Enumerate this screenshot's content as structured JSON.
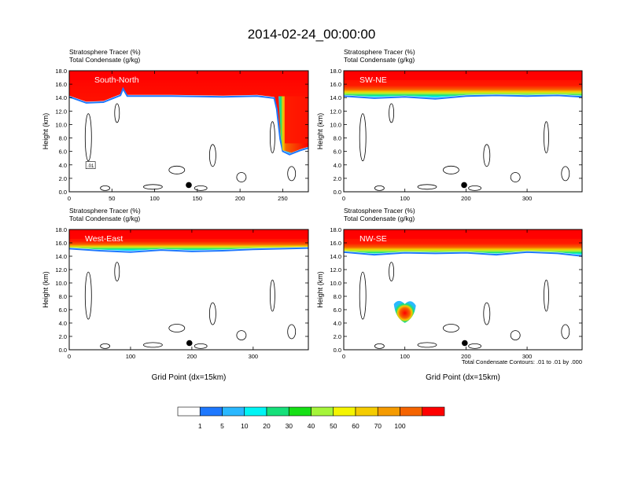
{
  "title": "2014-02-24_00:00:00",
  "colors": {
    "levels": [
      "#ffffff",
      "#1e78ff",
      "#2ab8ff",
      "#00f5f5",
      "#16e07a",
      "#16e016",
      "#a5f53a",
      "#f5f500",
      "#f5cc00",
      "#f59b00",
      "#f56400",
      "#ff0000"
    ],
    "contour": "#000000"
  },
  "colorbar": {
    "labels": [
      "1",
      "5",
      "10",
      "20",
      "30",
      "40",
      "50",
      "60",
      "70",
      "100"
    ]
  },
  "footer": {
    "contour_note": "Total Condensate Contours: .01 to .01 by .000"
  },
  "chart_data": [
    {
      "type": "heatmap",
      "panel_label": "South-North",
      "line1": "Stratosphere Tracer   (%)",
      "line2": "Total Condensate   (g/kg)",
      "ylabel": "Height (km)",
      "xlabel": "",
      "xlim": [
        0,
        280
      ],
      "ylim": [
        0,
        18
      ],
      "xticks": [
        "0",
        "50",
        "100",
        "150",
        "200",
        "250"
      ],
      "xtick_values": [
        0,
        50,
        100,
        150,
        200,
        250
      ],
      "yticks": [
        "0.0",
        "2.0",
        "4.0",
        "6.0",
        "8.0",
        "10.0",
        "12.0",
        "14.0",
        "16.0",
        "18.0"
      ],
      "tropopause_km": [
        [
          0,
          14.3
        ],
        [
          20,
          13.4
        ],
        [
          40,
          13.5
        ],
        [
          60,
          14.5
        ],
        [
          63,
          15.5
        ],
        [
          68,
          14.4
        ],
        [
          120,
          14.4
        ],
        [
          180,
          14.3
        ],
        [
          220,
          14.4
        ],
        [
          240,
          14.1
        ],
        [
          243,
          12.5
        ],
        [
          247,
          8
        ],
        [
          250,
          6.2
        ],
        [
          258,
          5.7
        ],
        [
          270,
          6.3
        ],
        [
          280,
          6.7
        ]
      ],
      "contour_box_label": ".01",
      "marker": {
        "x": 140,
        "y": 1.0
      }
    },
    {
      "type": "heatmap",
      "panel_label": "SW-NE",
      "line1": "Stratosphere Tracer   (%)",
      "line2": "Total Condensate   (g/kg)",
      "ylabel": "Height (km)",
      "xlabel": "",
      "xlim": [
        0,
        390
      ],
      "ylim": [
        0,
        18
      ],
      "xticks": [
        "0",
        "100",
        "200",
        "300"
      ],
      "xtick_values": [
        0,
        100,
        200,
        300
      ],
      "yticks": [
        "0.0",
        "2.0",
        "4.0",
        "6.0",
        "8.0",
        "10.0",
        "12.0",
        "14.0",
        "16.0",
        "18.0"
      ],
      "tropopause_km": [
        [
          0,
          14.4
        ],
        [
          50,
          14.1
        ],
        [
          100,
          14.3
        ],
        [
          150,
          14.0
        ],
        [
          200,
          14.4
        ],
        [
          250,
          14.5
        ],
        [
          300,
          14.4
        ],
        [
          350,
          14.5
        ],
        [
          390,
          14.3
        ]
      ],
      "marker": {
        "x": 197,
        "y": 1.0
      }
    },
    {
      "type": "heatmap",
      "panel_label": "West-East",
      "line1": "Stratosphere Tracer   (%)",
      "line2": "Total Condensate   (g/kg)",
      "ylabel": "Height (km)",
      "xlabel": "Grid Point (dx=15km)",
      "xlim": [
        0,
        390
      ],
      "ylim": [
        0,
        18
      ],
      "xticks": [
        "0",
        "100",
        "200",
        "300"
      ],
      "xtick_values": [
        0,
        100,
        200,
        300
      ],
      "yticks": [
        "0.0",
        "2.0",
        "4.0",
        "6.0",
        "8.0",
        "10.0",
        "12.0",
        "14.0",
        "16.0",
        "18.0"
      ],
      "tropopause_km": [
        [
          0,
          15.3
        ],
        [
          50,
          15.0
        ],
        [
          100,
          14.8
        ],
        [
          150,
          15.1
        ],
        [
          200,
          14.9
        ],
        [
          250,
          15.0
        ],
        [
          300,
          15.2
        ],
        [
          350,
          15.3
        ],
        [
          390,
          15.4
        ]
      ],
      "marker": {
        "x": 196,
        "y": 1.0
      }
    },
    {
      "type": "heatmap",
      "panel_label": "NW-SE",
      "line1": "Stratosphere Tracer   (%)",
      "line2": "Total Condensate   (g/kg)",
      "ylabel": "Height (km)",
      "xlabel": "Grid Point (dx=15km)",
      "xlim": [
        0,
        390
      ],
      "ylim": [
        0,
        18
      ],
      "xticks": [
        "0",
        "100",
        "200",
        "300"
      ],
      "xtick_values": [
        0,
        100,
        200,
        300
      ],
      "yticks": [
        "0.0",
        "2.0",
        "4.0",
        "6.0",
        "8.0",
        "10.0",
        "12.0",
        "14.0",
        "16.0",
        "18.0"
      ],
      "tropopause_km": [
        [
          0,
          14.8
        ],
        [
          50,
          14.4
        ],
        [
          100,
          14.7
        ],
        [
          150,
          14.6
        ],
        [
          200,
          14.7
        ],
        [
          250,
          14.4
        ],
        [
          300,
          14.8
        ],
        [
          350,
          14.6
        ],
        [
          390,
          14.2
        ]
      ],
      "blob": {
        "x": 100,
        "y": 5.9
      },
      "marker": {
        "x": 198,
        "y": 1.0
      }
    }
  ]
}
